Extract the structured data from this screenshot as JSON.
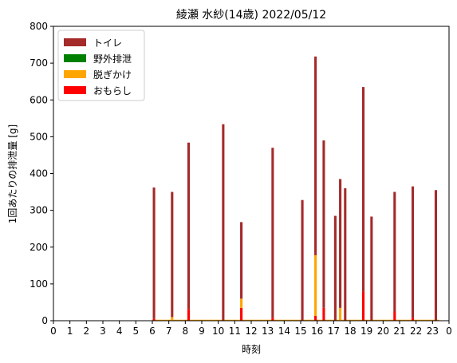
{
  "chart_data": {
    "type": "bar",
    "title": "綾瀬 水紗(14歳) 2022/05/12",
    "xlabel": "時刻",
    "ylabel": "1回あたりの排泄量 [g]",
    "xlim": [
      0,
      24
    ],
    "ylim": [
      0,
      800
    ],
    "yticks": [
      0,
      100,
      200,
      300,
      400,
      500,
      600,
      700,
      800
    ],
    "xticks": [
      "0",
      "1",
      "2",
      "3",
      "4",
      "5",
      "6",
      "7",
      "8",
      "9",
      "10",
      "11",
      "12",
      "13",
      "14",
      "15",
      "16",
      "17",
      "18",
      "19",
      "20",
      "21",
      "22",
      "23",
      "0"
    ],
    "grid": false,
    "legend_position": "top-left",
    "series": [
      {
        "name": "トイレ",
        "color": "#a52a2a"
      },
      {
        "name": "野外排泄",
        "color": "#008000"
      },
      {
        "name": "脱ぎかけ",
        "color": "#ffa500"
      },
      {
        "name": "おもらし",
        "color": "#ff0000"
      }
    ],
    "stacked": true,
    "bar_width_hours": 0.15,
    "events": [
      {
        "x": 6.1,
        "toilet": 357,
        "outdoor": 0,
        "halfway": 0,
        "accident": 5
      },
      {
        "x": 7.2,
        "toilet": 340,
        "outdoor": 0,
        "halfway": 10,
        "accident": 0
      },
      {
        "x": 8.2,
        "toilet": 452,
        "outdoor": 0,
        "halfway": 0,
        "accident": 32
      },
      {
        "x": 10.3,
        "toilet": 534,
        "outdoor": 0,
        "halfway": 0,
        "accident": 0
      },
      {
        "x": 11.4,
        "toilet": 208,
        "outdoor": 0,
        "halfway": 25,
        "accident": 35
      },
      {
        "x": 13.3,
        "toilet": 462,
        "outdoor": 0,
        "halfway": 0,
        "accident": 8
      },
      {
        "x": 15.1,
        "toilet": 328,
        "outdoor": 0,
        "halfway": 0,
        "accident": 0
      },
      {
        "x": 15.9,
        "toilet": 540,
        "outdoor": 0,
        "halfway": 165,
        "accident": 13
      },
      {
        "x": 16.4,
        "toilet": 455,
        "outdoor": 0,
        "halfway": 0,
        "accident": 35
      },
      {
        "x": 17.1,
        "toilet": 285,
        "outdoor": 0,
        "halfway": 0,
        "accident": 0
      },
      {
        "x": 17.4,
        "toilet": 350,
        "outdoor": 0,
        "halfway": 35,
        "accident": 0
      },
      {
        "x": 17.7,
        "toilet": 360,
        "outdoor": 0,
        "halfway": 0,
        "accident": 0
      },
      {
        "x": 18.8,
        "toilet": 555,
        "outdoor": 0,
        "halfway": 0,
        "accident": 80
      },
      {
        "x": 19.3,
        "toilet": 283,
        "outdoor": 0,
        "halfway": 0,
        "accident": 0
      },
      {
        "x": 20.7,
        "toilet": 325,
        "outdoor": 0,
        "halfway": 0,
        "accident": 25
      },
      {
        "x": 21.8,
        "toilet": 357,
        "outdoor": 0,
        "halfway": 0,
        "accident": 8
      },
      {
        "x": 23.2,
        "toilet": 355,
        "outdoor": 0,
        "halfway": 0,
        "accident": 0
      }
    ],
    "baseline_color": "#ffa500"
  }
}
